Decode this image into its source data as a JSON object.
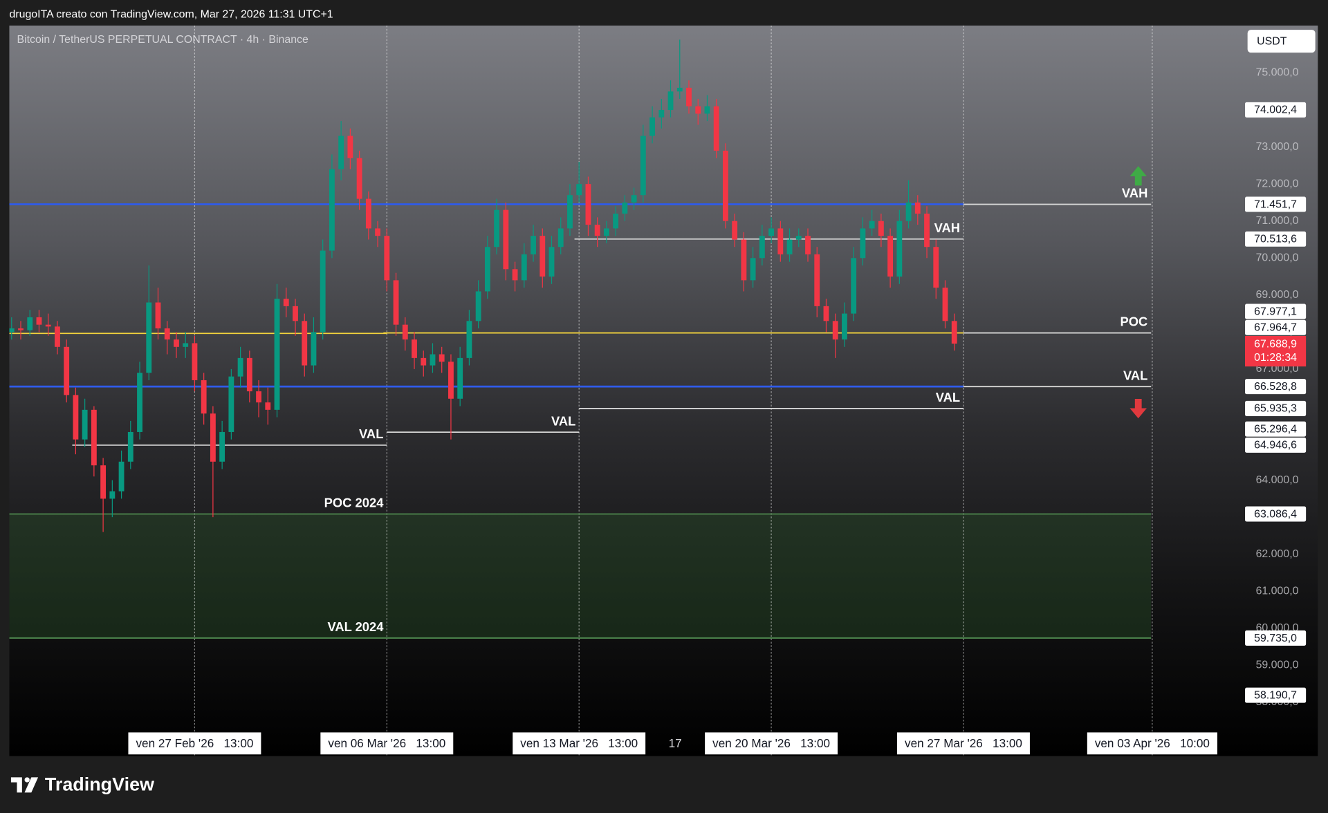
{
  "header": {
    "text": "drugoITA creato con TradingView.com, Mar 27, 2026 11:31 UTC+1"
  },
  "footer": {
    "brand": "TradingView"
  },
  "chart_data": {
    "type": "candlestick",
    "title": "Bitcoin / TetherUS PERPETUAL CONTRACT · 4h · Binance",
    "currency": "USDT",
    "up_color": "#089981",
    "down_color": "#f23645",
    "xlim": [
      -162,
      981
    ],
    "ylim": [
      56546,
      76280
    ],
    "xticks": [
      {
        "value": 0,
        "label": "ven 27 Feb '26   13:00"
      },
      {
        "value": 168,
        "label": "ven 06 Mar '26   13:00"
      },
      {
        "value": 336,
        "label": "ven 13 Mar '26   13:00"
      },
      {
        "value": 420,
        "label": "17"
      },
      {
        "value": 504,
        "label": "ven 20 Mar '26   13:00"
      },
      {
        "value": 672,
        "label": "ven 27 Mar '26   13:00"
      },
      {
        "value": 837,
        "label": "ven 03 Apr '26   10:00"
      }
    ],
    "yticks": [
      {
        "value": 75000,
        "label": "75.000,0"
      },
      {
        "value": 74000,
        "label": "74.000,0"
      },
      {
        "value": 73000,
        "label": "73.000,0"
      },
      {
        "value": 72000,
        "label": "72.000,0"
      },
      {
        "value": 71000,
        "label": "71.000,0"
      },
      {
        "value": 70000,
        "label": "70.000,0"
      },
      {
        "value": 69000,
        "label": "69.000,0"
      },
      {
        "value": 68000,
        "label": "68.000,0"
      },
      {
        "value": 67000,
        "label": "67.000,0"
      },
      {
        "value": 66000,
        "label": "66.000,0"
      },
      {
        "value": 65000,
        "label": "65.000,0"
      },
      {
        "value": 64000,
        "label": "64.000,0"
      },
      {
        "value": 63000,
        "label": "63.000,0"
      },
      {
        "value": 62000,
        "label": "62.000,0"
      },
      {
        "value": 61000,
        "label": "61.000,0"
      },
      {
        "value": 60000,
        "label": "60.000,0"
      },
      {
        "value": 59000,
        "label": "59.000,0"
      },
      {
        "value": 58000,
        "label": "58.000,0"
      }
    ],
    "x": [
      -160,
      -152,
      -144,
      -136,
      -128,
      -120,
      -112,
      -104,
      -96,
      -88,
      -80,
      -72,
      -64,
      -56,
      -48,
      -40,
      -32,
      -24,
      -16,
      -8,
      0,
      8,
      16,
      24,
      32,
      40,
      48,
      56,
      64,
      72,
      80,
      88,
      96,
      104,
      112,
      120,
      128,
      136,
      144,
      152,
      160,
      168,
      176,
      184,
      192,
      200,
      208,
      216,
      224,
      232,
      240,
      248,
      256,
      264,
      272,
      280,
      288,
      296,
      304,
      312,
      320,
      328,
      336,
      344,
      352,
      360,
      368,
      376,
      384,
      392,
      400,
      408,
      416,
      424,
      432,
      440,
      448,
      456,
      464,
      472,
      480,
      488,
      496,
      504,
      512,
      520,
      528,
      536,
      544,
      552,
      560,
      568,
      576,
      584,
      592,
      600,
      608,
      616,
      624,
      632,
      640,
      648,
      656,
      664
    ],
    "ohlc": [
      [
        68000,
        68400,
        67800,
        68100
      ],
      [
        68100,
        68300,
        67800,
        68050
      ],
      [
        68050,
        68600,
        67900,
        68400
      ],
      [
        68400,
        68600,
        68000,
        68200
      ],
      [
        68200,
        68500,
        67900,
        68150
      ],
      [
        68150,
        68300,
        67400,
        67600
      ],
      [
        67600,
        67800,
        66100,
        66300
      ],
      [
        66300,
        66500,
        64700,
        65100
      ],
      [
        65100,
        66200,
        64900,
        65900
      ],
      [
        65900,
        66000,
        64100,
        64400
      ],
      [
        64400,
        64600,
        62600,
        63500
      ],
      [
        63500,
        64000,
        63000,
        63700
      ],
      [
        63700,
        64800,
        63500,
        64500
      ],
      [
        64500,
        65600,
        64300,
        65300
      ],
      [
        65300,
        67200,
        65100,
        66900
      ],
      [
        66900,
        69800,
        66700,
        68800
      ],
      [
        68800,
        69200,
        67800,
        68100
      ],
      [
        68100,
        68300,
        67400,
        67800
      ],
      [
        67800,
        68000,
        67300,
        67600
      ],
      [
        67600,
        68000,
        67300,
        67700
      ],
      [
        67700,
        67900,
        66400,
        66700
      ],
      [
        66700,
        66900,
        65500,
        65800
      ],
      [
        65800,
        66000,
        63000,
        64500
      ],
      [
        64500,
        65600,
        64300,
        65300
      ],
      [
        65300,
        67000,
        65100,
        66800
      ],
      [
        66800,
        67600,
        66500,
        67300
      ],
      [
        67300,
        67500,
        66100,
        66400
      ],
      [
        66400,
        66700,
        65700,
        66100
      ],
      [
        66100,
        66500,
        65500,
        65900
      ],
      [
        65900,
        69300,
        65700,
        68900
      ],
      [
        68900,
        69200,
        68400,
        68700
      ],
      [
        68700,
        68900,
        67900,
        68300
      ],
      [
        68300,
        68500,
        66800,
        67100
      ],
      [
        67100,
        68400,
        66900,
        68000
      ],
      [
        68000,
        70500,
        67800,
        70200
      ],
      [
        70200,
        72800,
        70000,
        72400
      ],
      [
        72400,
        73700,
        72100,
        73300
      ],
      [
        73300,
        73500,
        72400,
        72700
      ],
      [
        72700,
        72900,
        71300,
        71600
      ],
      [
        71600,
        71800,
        70500,
        70800
      ],
      [
        70800,
        71000,
        70300,
        70600
      ],
      [
        70600,
        70800,
        69100,
        69400
      ],
      [
        69400,
        69600,
        67900,
        68200
      ],
      [
        68200,
        68400,
        67500,
        67800
      ],
      [
        67800,
        68000,
        67000,
        67300
      ],
      [
        67300,
        67500,
        66800,
        67100
      ],
      [
        67100,
        67700,
        66900,
        67400
      ],
      [
        67400,
        67600,
        66900,
        67200
      ],
      [
        67200,
        67400,
        65100,
        66200
      ],
      [
        66200,
        67600,
        66000,
        67300
      ],
      [
        67300,
        68600,
        67100,
        68300
      ],
      [
        68300,
        69400,
        68100,
        69100
      ],
      [
        69100,
        70600,
        68900,
        70300
      ],
      [
        70300,
        71600,
        70100,
        71300
      ],
      [
        71300,
        71500,
        69400,
        69700
      ],
      [
        69700,
        69900,
        69100,
        69400
      ],
      [
        69400,
        70400,
        69200,
        70100
      ],
      [
        70100,
        70900,
        69900,
        70600
      ],
      [
        70600,
        70800,
        69200,
        69500
      ],
      [
        69500,
        70600,
        69300,
        70300
      ],
      [
        70300,
        71100,
        70100,
        70800
      ],
      [
        70800,
        72000,
        70600,
        71700
      ],
      [
        71700,
        72600,
        71500,
        72000
      ],
      [
        72000,
        72200,
        70600,
        70900
      ],
      [
        70900,
        71100,
        70300,
        70600
      ],
      [
        70600,
        71000,
        70400,
        70800
      ],
      [
        70800,
        71400,
        70600,
        71200
      ],
      [
        71200,
        71700,
        71000,
        71500
      ],
      [
        71500,
        71900,
        71300,
        71700
      ],
      [
        71700,
        73600,
        71500,
        73300
      ],
      [
        73300,
        74100,
        73100,
        73800
      ],
      [
        73800,
        74300,
        73500,
        74000
      ],
      [
        74000,
        74800,
        73800,
        74500
      ],
      [
        74500,
        75900,
        74300,
        74600
      ],
      [
        74600,
        74800,
        73900,
        74100
      ],
      [
        74100,
        74300,
        73600,
        73900
      ],
      [
        73900,
        74400,
        73700,
        74100
      ],
      [
        74100,
        74300,
        72700,
        72900
      ],
      [
        72900,
        73100,
        70800,
        71000
      ],
      [
        71000,
        71200,
        70300,
        70500
      ],
      [
        70500,
        70700,
        69100,
        69400
      ],
      [
        69400,
        70300,
        69200,
        70000
      ],
      [
        70000,
        70900,
        69800,
        70600
      ],
      [
        70600,
        71100,
        70400,
        70800
      ],
      [
        70800,
        71000,
        69900,
        70100
      ],
      [
        70100,
        70800,
        69900,
        70500
      ],
      [
        70500,
        70800,
        70300,
        70600
      ],
      [
        70600,
        70800,
        69900,
        70100
      ],
      [
        70100,
        70300,
        68400,
        68700
      ],
      [
        68700,
        68900,
        68000,
        68300
      ],
      [
        68300,
        68500,
        67300,
        67800
      ],
      [
        67800,
        68800,
        67600,
        68500
      ],
      [
        68500,
        70300,
        68300,
        70000
      ],
      [
        70000,
        71100,
        69800,
        70800
      ],
      [
        70800,
        71300,
        70600,
        71000
      ],
      [
        71000,
        71200,
        70300,
        70600
      ],
      [
        70600,
        70800,
        69200,
        69500
      ],
      [
        69500,
        71300,
        69300,
        71000
      ],
      [
        71000,
        72100,
        70800,
        71500
      ],
      [
        71500,
        71700,
        70900,
        71200
      ],
      [
        71200,
        71400,
        70000,
        70300
      ],
      [
        70300,
        70500,
        68900,
        69200
      ],
      [
        69200,
        69400,
        68100,
        68300
      ],
      [
        68300,
        68500,
        67500,
        67688.9
      ]
    ],
    "current_price": {
      "value": 67688.9,
      "label": "67.688,9",
      "countdown": "01:28:34"
    },
    "levels": [
      {
        "price": {
          "value": 71451.7,
          "label": "71.451,7"
        },
        "segments": [
          {
            "x": [
              -162,
              672
            ],
            "color": "#2f5bea"
          },
          {
            "x": [
              672,
              836
            ],
            "color": "#d6d6d6",
            "text": "VAH"
          }
        ]
      },
      {
        "price": {
          "value": 70513.6,
          "label": "70.513,6"
        },
        "segments": [
          {
            "x": [
              332,
              672
            ],
            "color": "#d6d6d6",
            "text": "VAH"
          }
        ]
      },
      {
        "price": {
          "value": 67977.1,
          "label": "67.977,1"
        },
        "segments": [
          {
            "x": [
              165,
              672
            ],
            "color": "#f2d23c"
          },
          {
            "x": [
              672,
              836
            ],
            "color": "#d6d6d6",
            "text": "POC"
          }
        ]
      },
      {
        "price": {
          "value": 67964.7,
          "label": "67.964,7"
        },
        "segments": [
          {
            "x": [
              -162,
              168
            ],
            "color": "#f2d23c"
          }
        ]
      },
      {
        "price": {
          "value": 66528.8,
          "label": "66.528,8"
        },
        "segments": [
          {
            "x": [
              -162,
              672
            ],
            "color": "#2f5bea"
          },
          {
            "x": [
              672,
              836
            ],
            "color": "#d6d6d6",
            "text": "VAL"
          }
        ]
      },
      {
        "price": {
          "value": 65935.3,
          "label": "65.935,3"
        },
        "segments": [
          {
            "x": [
              336,
              672
            ],
            "color": "#d6d6d6",
            "text": "VAL"
          }
        ]
      },
      {
        "price": {
          "value": 65296.4,
          "label": "65.296,4"
        },
        "segments": [
          {
            "x": [
              168,
              336
            ],
            "color": "#d6d6d6",
            "text": "VAL"
          }
        ]
      },
      {
        "price": {
          "value": 64946.6,
          "label": "64.946,6"
        },
        "segments": [
          {
            "x": [
              -107,
              168
            ],
            "color": "#d6d6d6",
            "text": "VAL"
          }
        ]
      },
      {
        "price": {
          "value": 63086.4,
          "label": "63.086,4"
        },
        "segments": [
          {
            "x": [
              -162,
              168
            ],
            "color": "#4f8a4f",
            "text": "POC 2024"
          },
          {
            "x": [
              168,
              836
            ],
            "color": "#4f8a4f"
          }
        ]
      },
      {
        "price": {
          "value": 59735.0,
          "label": "59.735,0"
        },
        "segments": [
          {
            "x": [
              -162,
              168
            ],
            "color": "#4f8a4f",
            "text": "VAL 2024"
          },
          {
            "x": [
              168,
              836
            ],
            "color": "#4f8a4f"
          }
        ]
      }
    ],
    "zone": {
      "from": 63086.4,
      "to": 59735.0,
      "x": [
        -162,
        836
      ],
      "color": "#2c5a2c"
    },
    "price_marks": [
      {
        "value": 74002.4,
        "label": "74.002,4"
      },
      {
        "value": 58190.7,
        "label": "58.190,7"
      }
    ]
  }
}
